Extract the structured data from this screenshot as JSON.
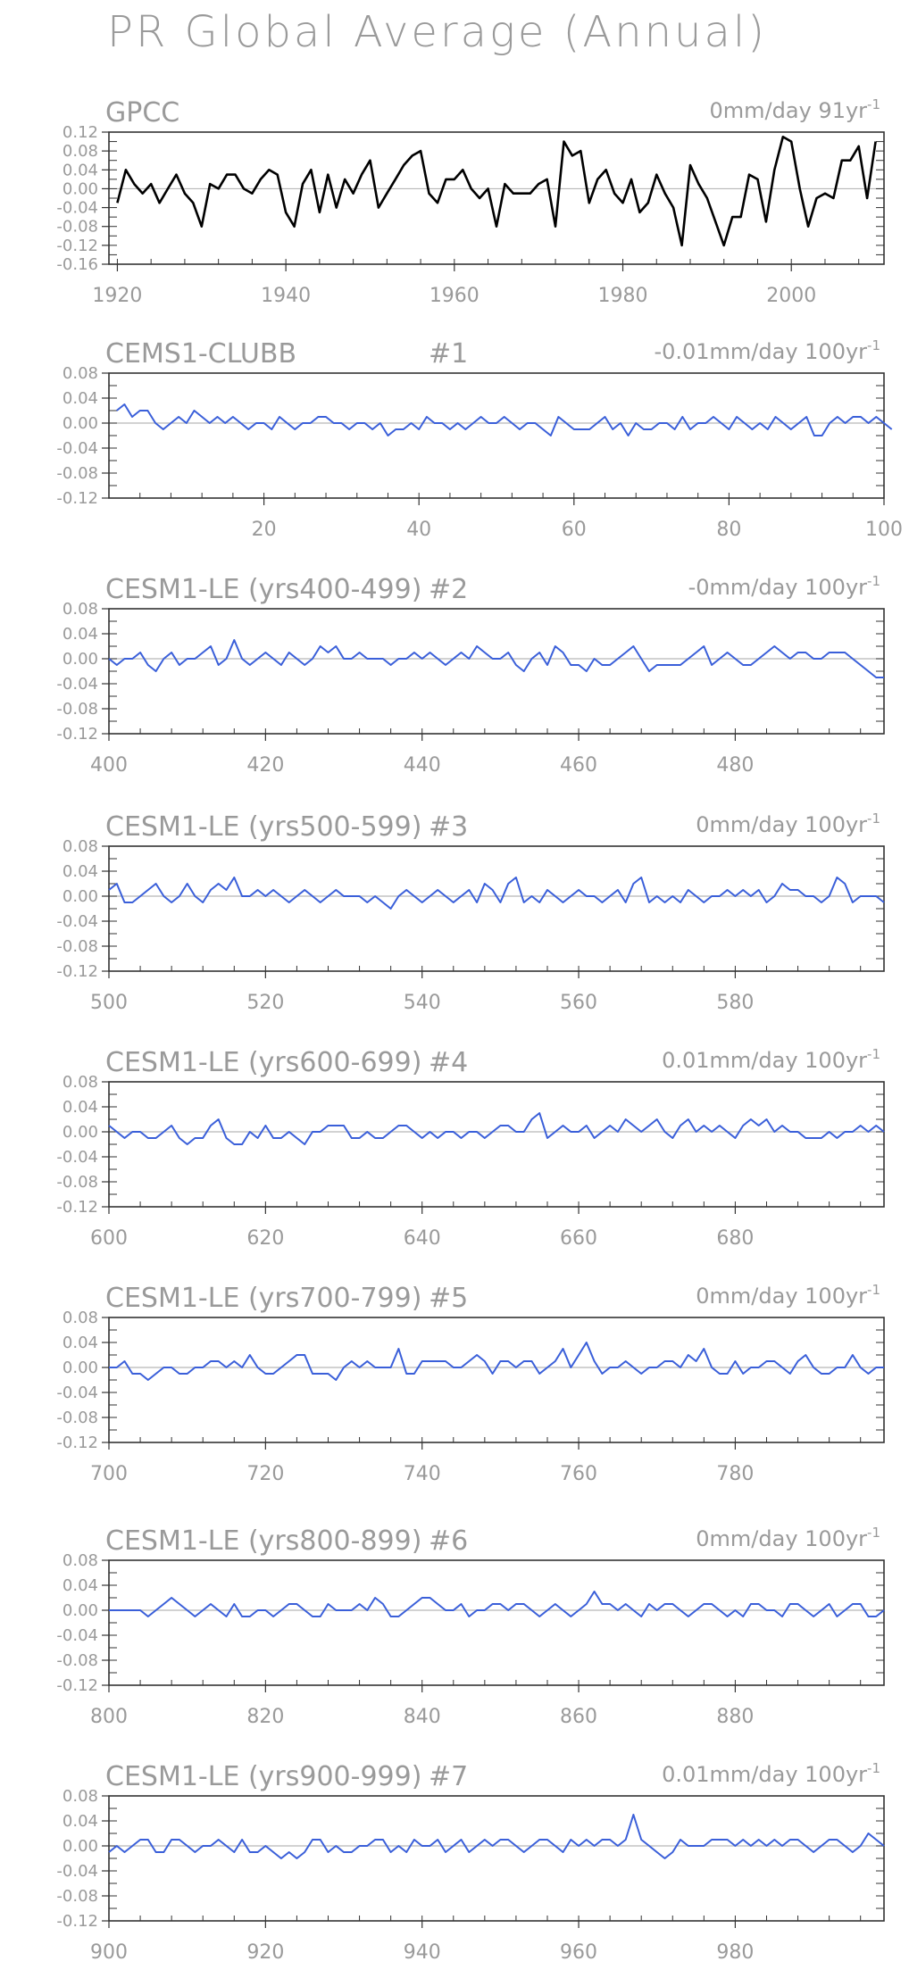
{
  "figure": {
    "title": "PR Global Average (Annual)"
  },
  "chart_data": [
    {
      "type": "line",
      "title": "GPCC",
      "trend_label": "0mm/day 91yr",
      "trend_sup": "-1",
      "line_color": "#000000",
      "ylim": [
        -0.16,
        0.12
      ],
      "yticks": [
        0.12,
        0.08,
        0.04,
        0.0,
        -0.04,
        -0.08,
        -0.12,
        -0.16
      ],
      "ytick_labels": [
        "0.12",
        "0.08",
        "0.04",
        "0.00",
        "-0.04",
        "-0.08",
        "-0.12",
        "-0.16"
      ],
      "xlim": [
        1919,
        2011
      ],
      "xticks": [
        1920,
        1940,
        1960,
        1980,
        2000
      ],
      "xtick_labels": [
        "1920",
        "1940",
        "1960",
        "1980",
        "2000"
      ],
      "x_start": 1920,
      "values": [
        -0.03,
        0.04,
        0.01,
        -0.01,
        0.01,
        -0.03,
        0.0,
        0.03,
        -0.01,
        -0.03,
        -0.08,
        0.01,
        0.0,
        0.03,
        0.03,
        0.0,
        -0.01,
        0.02,
        0.04,
        0.03,
        -0.05,
        -0.08,
        0.01,
        0.04,
        -0.05,
        0.03,
        -0.04,
        0.02,
        -0.01,
        0.03,
        0.06,
        -0.04,
        -0.01,
        0.02,
        0.05,
        0.07,
        0.08,
        -0.01,
        -0.03,
        0.02,
        0.02,
        0.04,
        0.0,
        -0.02,
        0.0,
        -0.08,
        0.01,
        -0.01,
        -0.01,
        -0.01,
        0.01,
        0.02,
        -0.08,
        0.1,
        0.07,
        0.08,
        -0.03,
        0.02,
        0.04,
        -0.01,
        -0.03,
        0.02,
        -0.05,
        -0.03,
        0.03,
        -0.01,
        -0.04,
        -0.12,
        0.05,
        0.01,
        -0.02,
        -0.07,
        -0.12,
        -0.06,
        -0.06,
        0.03,
        0.02,
        -0.07,
        0.04,
        0.11,
        0.1,
        0.0,
        -0.08,
        -0.02,
        -0.01,
        -0.02,
        0.06,
        0.06,
        0.09,
        -0.02,
        0.1
      ]
    },
    {
      "type": "line",
      "title": "CEMS1-CLUBB",
      "run_id": "#1",
      "trend_label": "-0.01mm/day 100yr",
      "trend_sup": "-1",
      "line_color": "#3a5fd9",
      "ylim": [
        -0.12,
        0.08
      ],
      "yticks": [
        0.08,
        0.04,
        0.0,
        -0.04,
        -0.08,
        -0.12
      ],
      "ytick_labels": [
        "0.08",
        "0.04",
        "0.00",
        "-0.04",
        "-0.08",
        "-0.12"
      ],
      "xlim": [
        0,
        100
      ],
      "xticks": [
        20,
        40,
        60,
        80,
        100
      ],
      "xtick_labels": [
        "20",
        "40",
        "60",
        "80",
        "100"
      ],
      "x_start": 1,
      "values": [
        0.02,
        0.03,
        0.01,
        0.02,
        0.02,
        0.0,
        -0.01,
        0.0,
        0.01,
        0.0,
        0.02,
        0.01,
        0.0,
        0.01,
        -0.0,
        0.01,
        0.0,
        -0.01,
        0.0,
        0.0,
        -0.01,
        0.01,
        0.0,
        -0.01,
        0.0,
        0.0,
        0.01,
        0.01,
        0.0,
        0.0,
        -0.01,
        0.0,
        0.0,
        -0.01,
        0.0,
        -0.02,
        -0.01,
        -0.01,
        0.0,
        -0.01,
        0.01,
        0.0,
        0.0,
        -0.01,
        0.0,
        -0.01,
        0.0,
        0.01,
        0.0,
        0.0,
        0.01,
        0.0,
        -0.01,
        0.0,
        0.0,
        -0.01,
        -0.02,
        0.01,
        0.0,
        -0.01,
        -0.01,
        -0.01,
        0.0,
        0.01,
        -0.01,
        0.0,
        -0.02,
        0.0,
        -0.01,
        -0.01,
        0.0,
        0.0,
        -0.01,
        0.01,
        -0.01,
        0.0,
        0.0,
        0.01,
        0.0,
        -0.01,
        0.01,
        0.0,
        -0.01,
        0.0,
        -0.01,
        0.01,
        0.0,
        -0.01,
        0.0,
        0.01,
        -0.02,
        -0.02,
        0.0,
        0.01,
        0.0,
        0.01,
        0.01,
        0.0,
        0.01,
        0.0,
        -0.01
      ]
    },
    {
      "type": "line",
      "title": "CESM1-LE (yrs400-499)",
      "run_id": "#2",
      "trend_label": "-0mm/day 100yr",
      "trend_sup": "-1",
      "line_color": "#3a5fd9",
      "ylim": [
        -0.12,
        0.08
      ],
      "yticks": [
        0.08,
        0.04,
        0.0,
        -0.04,
        -0.08,
        -0.12
      ],
      "ytick_labels": [
        "0.08",
        "0.04",
        "0.00",
        "-0.04",
        "-0.08",
        "-0.12"
      ],
      "xlim": [
        400,
        499
      ],
      "xticks": [
        400,
        420,
        440,
        460,
        480
      ],
      "xtick_labels": [
        "400",
        "420",
        "440",
        "460",
        "480"
      ],
      "x_start": 400,
      "values": [
        0.0,
        -0.01,
        0.0,
        0.0,
        0.01,
        -0.01,
        -0.02,
        0.0,
        0.01,
        -0.01,
        0.0,
        0.0,
        0.01,
        0.02,
        -0.01,
        0.0,
        0.03,
        0.0,
        -0.01,
        0.0,
        0.01,
        0.0,
        -0.01,
        0.01,
        0.0,
        -0.01,
        0.0,
        0.02,
        0.01,
        0.02,
        0.0,
        0.0,
        0.01,
        0.0,
        0.0,
        0.0,
        -0.01,
        0.0,
        0.0,
        0.01,
        0.0,
        0.01,
        0.0,
        -0.01,
        0.0,
        0.01,
        0.0,
        0.02,
        0.01,
        0.0,
        0.0,
        0.01,
        -0.01,
        -0.02,
        0.0,
        0.01,
        -0.01,
        0.02,
        0.01,
        -0.01,
        -0.01,
        -0.02,
        0.0,
        -0.01,
        -0.01,
        0.0,
        0.01,
        0.02,
        0.0,
        -0.02,
        -0.01,
        -0.01,
        -0.01,
        -0.01,
        0.0,
        0.01,
        0.02,
        -0.01,
        0.0,
        0.01,
        0.0,
        -0.01,
        -0.01,
        0.0,
        0.01,
        0.02,
        0.01,
        0.0,
        0.01,
        0.01,
        0.0,
        0.0,
        0.01,
        0.01,
        0.01,
        0.0,
        -0.01,
        -0.02,
        -0.03,
        -0.03
      ]
    },
    {
      "type": "line",
      "title": "CESM1-LE (yrs500-599)",
      "run_id": "#3",
      "trend_label": "0mm/day 100yr",
      "trend_sup": "-1",
      "line_color": "#3a5fd9",
      "ylim": [
        -0.12,
        0.08
      ],
      "yticks": [
        0.08,
        0.04,
        0.0,
        -0.04,
        -0.08,
        -0.12
      ],
      "ytick_labels": [
        "0.08",
        "0.04",
        "0.00",
        "-0.04",
        "-0.08",
        "-0.12"
      ],
      "xlim": [
        500,
        599
      ],
      "xticks": [
        500,
        520,
        540,
        560,
        580
      ],
      "xtick_labels": [
        "500",
        "520",
        "540",
        "560",
        "580"
      ],
      "x_start": 500,
      "values": [
        0.01,
        0.02,
        -0.01,
        -0.01,
        0.0,
        0.01,
        0.02,
        0.0,
        -0.01,
        0.0,
        0.02,
        0.0,
        -0.01,
        0.01,
        0.02,
        0.01,
        0.03,
        0.0,
        0.0,
        0.01,
        0.0,
        0.01,
        0.0,
        -0.01,
        0.0,
        0.01,
        0.0,
        -0.01,
        0.0,
        0.01,
        0.0,
        0.0,
        0.0,
        -0.01,
        0.0,
        -0.01,
        -0.02,
        0.0,
        0.01,
        0.0,
        -0.01,
        0.0,
        0.01,
        0.0,
        -0.01,
        0.0,
        0.01,
        -0.01,
        0.02,
        0.01,
        -0.01,
        0.02,
        0.03,
        -0.01,
        0.0,
        -0.01,
        0.01,
        0.0,
        -0.01,
        0.0,
        0.01,
        0.0,
        0.0,
        -0.01,
        0.0,
        0.01,
        -0.01,
        0.02,
        0.03,
        -0.01,
        0.0,
        -0.01,
        0.0,
        -0.01,
        0.01,
        0.0,
        -0.01,
        0.0,
        0.0,
        0.01,
        0.0,
        0.01,
        0.0,
        0.01,
        -0.01,
        0.0,
        0.02,
        0.01,
        0.01,
        0.0,
        0.0,
        -0.01,
        0.0,
        0.03,
        0.02,
        -0.01,
        0.0,
        0.0,
        0.0,
        -0.01
      ]
    },
    {
      "type": "line",
      "title": "CESM1-LE (yrs600-699)",
      "run_id": "#4",
      "trend_label": "0.01mm/day 100yr",
      "trend_sup": "-1",
      "line_color": "#3a5fd9",
      "ylim": [
        -0.12,
        0.08
      ],
      "yticks": [
        0.08,
        0.04,
        0.0,
        -0.04,
        -0.08,
        -0.12
      ],
      "ytick_labels": [
        "0.08",
        "0.04",
        "0.00",
        "-0.04",
        "-0.08",
        "-0.12"
      ],
      "xlim": [
        600,
        699
      ],
      "xticks": [
        600,
        620,
        640,
        660,
        680
      ],
      "xtick_labels": [
        "600",
        "620",
        "640",
        "660",
        "680"
      ],
      "x_start": 600,
      "values": [
        0.01,
        0.0,
        -0.01,
        0.0,
        0.0,
        -0.01,
        -0.01,
        0.0,
        0.01,
        -0.01,
        -0.02,
        -0.01,
        -0.01,
        0.01,
        0.02,
        -0.01,
        -0.02,
        -0.02,
        0.0,
        -0.01,
        0.01,
        -0.01,
        -0.01,
        0.0,
        -0.01,
        -0.02,
        0.0,
        0.0,
        0.01,
        0.01,
        0.01,
        -0.01,
        -0.01,
        0.0,
        -0.01,
        -0.01,
        0.0,
        0.01,
        0.01,
        0.0,
        -0.01,
        0.0,
        -0.01,
        0.0,
        0.0,
        -0.01,
        0.0,
        0.0,
        -0.01,
        0.0,
        0.01,
        0.01,
        0.0,
        0.0,
        0.02,
        0.03,
        -0.01,
        0.0,
        0.01,
        0.0,
        0.0,
        0.01,
        -0.01,
        0.0,
        0.01,
        0.0,
        0.02,
        0.01,
        0.0,
        0.01,
        0.02,
        0.0,
        -0.01,
        0.01,
        0.02,
        0.0,
        0.01,
        0.0,
        0.01,
        0.0,
        -0.01,
        0.01,
        0.02,
        0.01,
        0.02,
        0.0,
        0.01,
        0.0,
        0.0,
        -0.01,
        -0.01,
        -0.01,
        0.0,
        -0.01,
        0.0,
        0.0,
        0.01,
        0.0,
        0.01,
        0.0
      ]
    },
    {
      "type": "line",
      "title": "CESM1-LE (yrs700-799)",
      "run_id": "#5",
      "trend_label": "0mm/day 100yr",
      "trend_sup": "-1",
      "line_color": "#3a5fd9",
      "ylim": [
        -0.12,
        0.08
      ],
      "yticks": [
        0.08,
        0.04,
        0.0,
        -0.04,
        -0.08,
        -0.12
      ],
      "ytick_labels": [
        "0.08",
        "0.04",
        "0.00",
        "-0.04",
        "-0.08",
        "-0.12"
      ],
      "xlim": [
        700,
        799
      ],
      "xticks": [
        700,
        720,
        740,
        760,
        780
      ],
      "xtick_labels": [
        "700",
        "720",
        "740",
        "760",
        "780"
      ],
      "x_start": 700,
      "values": [
        0.0,
        0.0,
        0.01,
        -0.01,
        -0.01,
        -0.02,
        -0.01,
        0.0,
        0.0,
        -0.01,
        -0.01,
        0.0,
        0.0,
        0.01,
        0.01,
        0.0,
        0.01,
        0.0,
        0.02,
        0.0,
        -0.01,
        -0.01,
        0.0,
        0.01,
        0.02,
        0.02,
        -0.01,
        -0.01,
        -0.01,
        -0.02,
        0.0,
        0.01,
        0.0,
        0.01,
        0.0,
        0.0,
        0.0,
        0.03,
        -0.01,
        -0.01,
        0.01,
        0.01,
        0.01,
        0.01,
        0.0,
        0.0,
        0.01,
        0.02,
        0.01,
        -0.01,
        0.01,
        0.01,
        0.0,
        0.01,
        0.01,
        -0.01,
        0.0,
        0.01,
        0.03,
        0.0,
        0.02,
        0.04,
        0.01,
        -0.01,
        0.0,
        0.0,
        0.01,
        0.0,
        -0.01,
        0.0,
        0.0,
        0.01,
        0.01,
        0.0,
        0.02,
        0.01,
        0.03,
        0.0,
        -0.01,
        -0.01,
        0.01,
        -0.01,
        0.0,
        0.0,
        0.01,
        0.01,
        0.0,
        -0.01,
        0.01,
        0.02,
        0.0,
        -0.01,
        -0.01,
        0.0,
        0.0,
        0.02,
        0.0,
        -0.01,
        0.0,
        0.0
      ]
    },
    {
      "type": "line",
      "title": "CESM1-LE (yrs800-899)",
      "run_id": "#6",
      "trend_label": "0mm/day 100yr",
      "trend_sup": "-1",
      "line_color": "#3a5fd9",
      "ylim": [
        -0.12,
        0.08
      ],
      "yticks": [
        0.08,
        0.04,
        0.0,
        -0.04,
        -0.08,
        -0.12
      ],
      "ytick_labels": [
        "0.08",
        "0.04",
        "0.00",
        "-0.04",
        "-0.08",
        "-0.12"
      ],
      "xlim": [
        800,
        899
      ],
      "xticks": [
        800,
        820,
        840,
        860,
        880
      ],
      "xtick_labels": [
        "800",
        "820",
        "840",
        "860",
        "880"
      ],
      "x_start": 800,
      "values": [
        0.0,
        0.0,
        0.0,
        0.0,
        0.0,
        -0.01,
        0.0,
        0.01,
        0.02,
        0.01,
        0.0,
        -0.01,
        0.0,
        0.01,
        0.0,
        -0.01,
        0.01,
        -0.01,
        -0.01,
        0.0,
        0.0,
        -0.01,
        0.0,
        0.01,
        0.01,
        0.0,
        -0.01,
        -0.01,
        0.01,
        0.0,
        0.0,
        0.0,
        0.01,
        0.0,
        0.02,
        0.01,
        -0.01,
        -0.01,
        0.0,
        0.01,
        0.02,
        0.02,
        0.01,
        0.0,
        0.0,
        0.01,
        -0.01,
        0.0,
        0.0,
        0.01,
        0.01,
        0.0,
        0.01,
        0.01,
        0.0,
        -0.01,
        0.0,
        0.01,
        0.0,
        -0.01,
        0.0,
        0.01,
        0.03,
        0.01,
        0.01,
        0.0,
        0.01,
        0.0,
        -0.01,
        0.01,
        0.0,
        0.01,
        0.01,
        0.0,
        -0.01,
        0.0,
        0.01,
        0.01,
        0.0,
        -0.01,
        0.0,
        -0.01,
        0.01,
        0.01,
        0.0,
        0.0,
        -0.01,
        0.01,
        0.01,
        0.0,
        -0.01,
        0.0,
        0.01,
        -0.01,
        0.0,
        0.01,
        0.01,
        -0.01,
        -0.01,
        0.0
      ]
    },
    {
      "type": "line",
      "title": "CESM1-LE (yrs900-999)",
      "run_id": "#7",
      "trend_label": "0.01mm/day 100yr",
      "trend_sup": "-1",
      "line_color": "#3a5fd9",
      "ylim": [
        -0.12,
        0.08
      ],
      "yticks": [
        0.08,
        0.04,
        0.0,
        -0.04,
        -0.08,
        -0.12
      ],
      "ytick_labels": [
        "0.08",
        "0.04",
        "0.00",
        "-0.04",
        "-0.08",
        "-0.12"
      ],
      "xlim": [
        900,
        999
      ],
      "xticks": [
        900,
        920,
        940,
        960,
        980
      ],
      "xtick_labels": [
        "900",
        "920",
        "940",
        "960",
        "980"
      ],
      "x_start": 900,
      "values": [
        -0.01,
        0.0,
        -0.01,
        0.0,
        0.01,
        0.01,
        -0.01,
        -0.01,
        0.01,
        0.01,
        0.0,
        -0.01,
        0.0,
        0.0,
        0.01,
        0.0,
        -0.01,
        0.01,
        -0.01,
        -0.01,
        0.0,
        -0.01,
        -0.02,
        -0.01,
        -0.02,
        -0.01,
        0.01,
        0.01,
        -0.01,
        0.0,
        -0.01,
        -0.01,
        0.0,
        0.0,
        0.01,
        0.01,
        -0.01,
        0.0,
        -0.01,
        0.01,
        0.0,
        0.0,
        0.01,
        -0.01,
        0.0,
        0.01,
        -0.01,
        0.0,
        0.01,
        0.0,
        0.01,
        0.01,
        0.0,
        -0.01,
        0.0,
        0.01,
        0.01,
        0.0,
        -0.01,
        0.01,
        0.0,
        0.01,
        0.0,
        0.01,
        0.01,
        0.0,
        0.01,
        0.05,
        0.01,
        0.0,
        -0.01,
        -0.02,
        -0.01,
        0.01,
        0.0,
        0.0,
        0.0,
        0.01,
        0.01,
        0.01,
        0.0,
        0.01,
        0.0,
        0.01,
        0.0,
        0.01,
        0.0,
        0.01,
        0.01,
        0.0,
        -0.01,
        0.0,
        0.01,
        0.01,
        0.0,
        -0.01,
        0.0,
        0.02,
        0.01,
        0.0
      ]
    }
  ]
}
